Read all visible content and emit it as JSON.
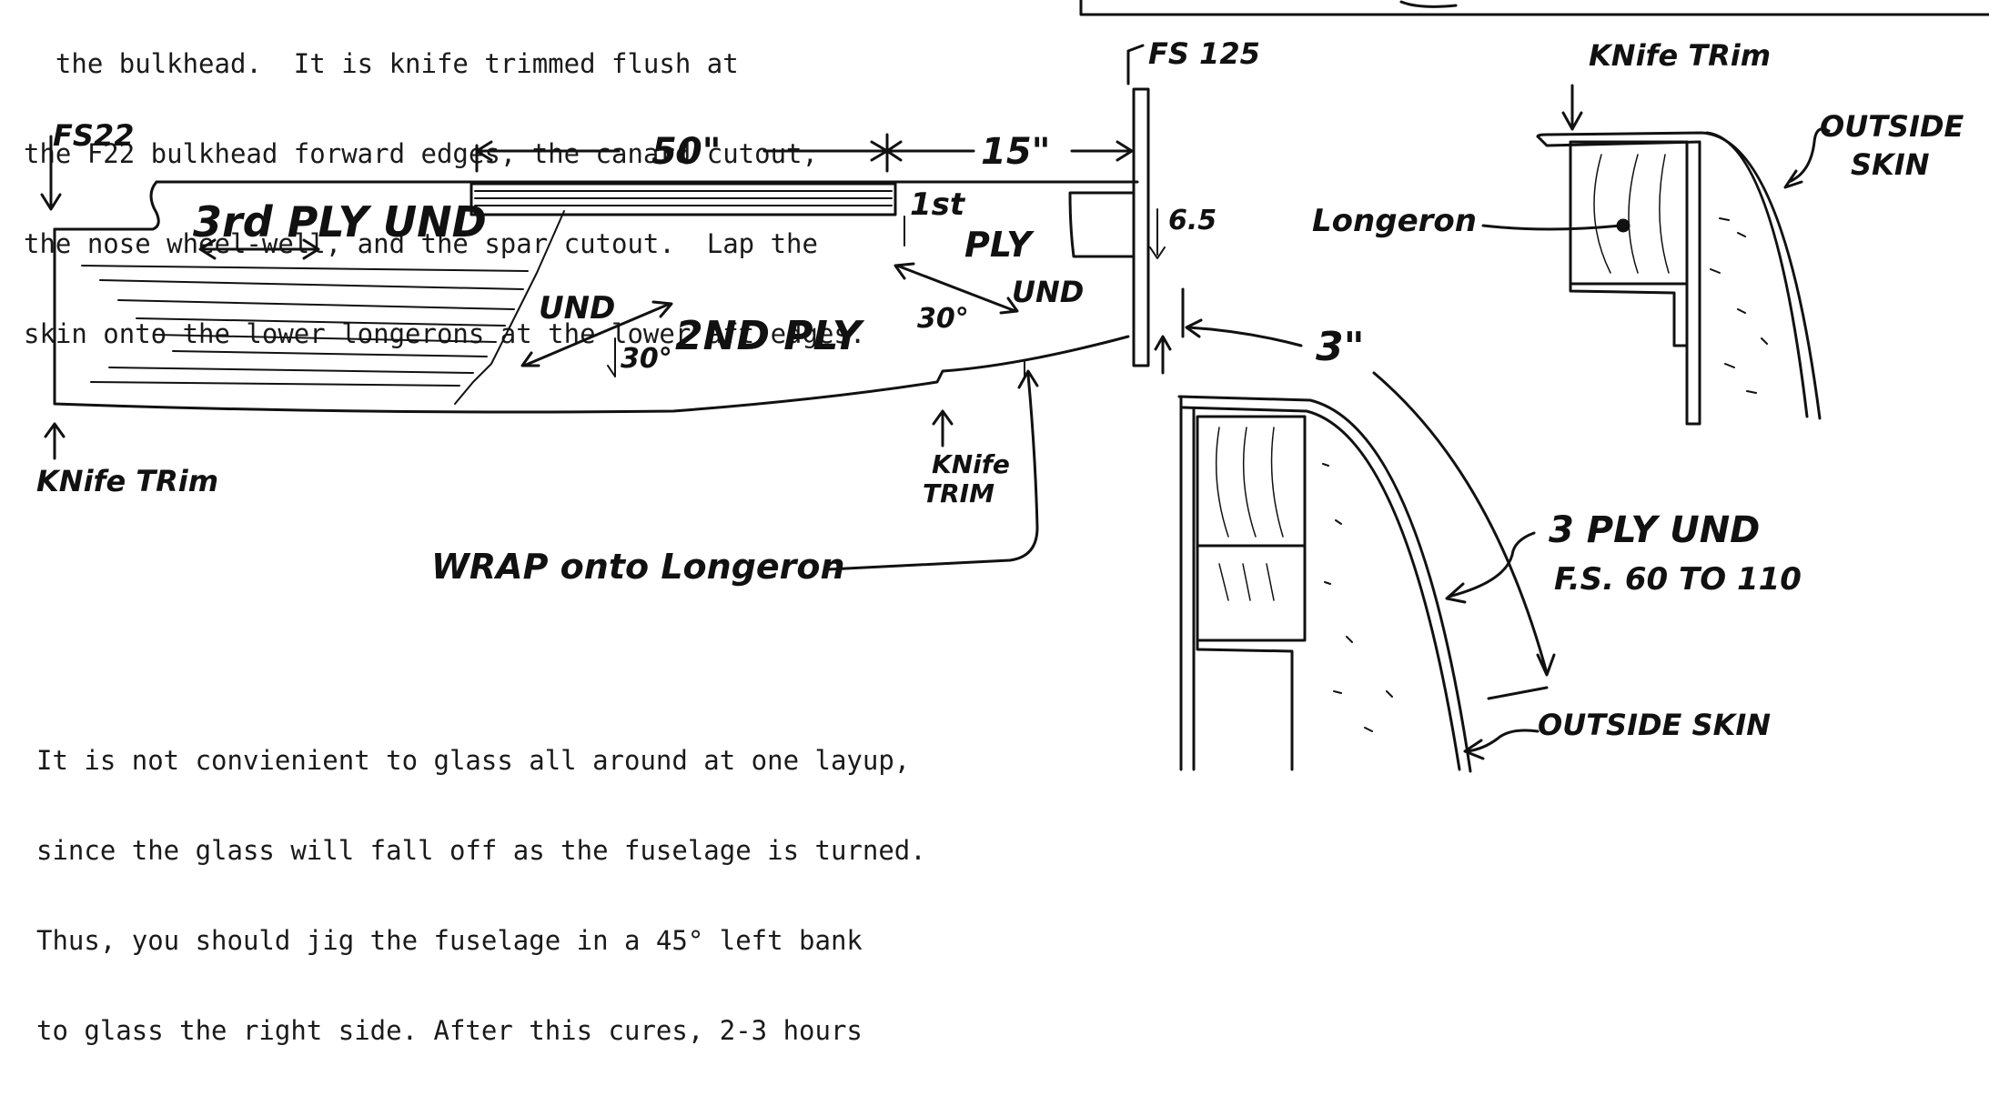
{
  "top_text": {
    "lines": [
      "  the bulkhead.  It is knife trimmed flush at",
      "the F22 bulkhead forward edges, the canard cutout,",
      "the nose wheel-well, and the spar cutout.  Lap the",
      "skin onto the lower longerons at the lower aft edges."
    ]
  },
  "bottom_text": {
    "lines": [
      "It is not convienient to glass all around at one layup,",
      "since the glass will fall off as the fuselage is turned.",
      "Thus, you should jig the fuselage in a 45° left bank",
      "to glass the right side. After this cures, 2-3 hours"
    ]
  },
  "side_view": {
    "fs22": "FS22",
    "fs125": "FS 125",
    "dim_50": "50\"",
    "dim_15": "15\"",
    "dim_6_5": "6.5",
    "dim_3": "3\"",
    "ply3": "3rd PLY UND",
    "ply1_a": "1st",
    "ply1_b": "PLY",
    "und_1": "UND",
    "angle_1": "30°",
    "und_2": "UND",
    "angle_2": "30°",
    "ply2": "2ND PLY",
    "knife_trim_left": "KNife TRim",
    "knife_trim_mid_1": "KNife",
    "knife_trim_mid_2": "TRIM",
    "wrap": "WRAP onto Longeron"
  },
  "section_top": {
    "knife_trim": "KNife TRim",
    "outside_skin_1": "OUTSIDE",
    "outside_skin_2": "SKIN",
    "longeron": "Longeron"
  },
  "section_bottom": {
    "three_ply_1": "3 PLY UND",
    "three_ply_2": "F.S. 60 TO 110",
    "outside_skin": "OUTSIDE SKIN"
  },
  "colors": {
    "ink": "#111111",
    "paper": "#ffffff"
  }
}
